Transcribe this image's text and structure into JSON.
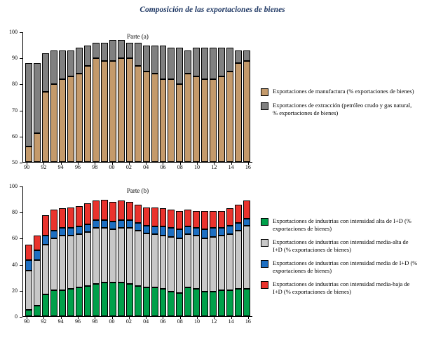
{
  "title": "Composición de las exportaciones de bienes",
  "chart_data": [
    {
      "type": "bar",
      "stacked": true,
      "title": "Parte (a)",
      "x": [
        1990,
        1991,
        1992,
        1993,
        1994,
        1995,
        1996,
        1997,
        1998,
        1999,
        2000,
        2001,
        2002,
        2003,
        2004,
        2005,
        2006,
        2007,
        2008,
        2009,
        2010,
        2011,
        2012,
        2013,
        2014,
        2015,
        2016
      ],
      "x_tick_labels": [
        "90",
        "92",
        "94",
        "96",
        "98",
        "00",
        "02",
        "04",
        "06",
        "08",
        "10",
        "12",
        "14",
        "16"
      ],
      "x_tick_every": 2,
      "ylim": [
        50,
        100
      ],
      "yticks": [
        50,
        60,
        70,
        80,
        90,
        100
      ],
      "legend_position": "right",
      "series": [
        {
          "key": "manufactura",
          "name": "Exportaciones de manufactura (% exportaciones de bienes)",
          "color": "#C49A6B",
          "values": [
            56,
            61,
            77,
            80,
            82,
            83,
            84,
            87,
            90,
            89,
            89,
            90,
            90,
            87,
            85,
            84,
            82,
            82,
            80,
            84,
            83,
            82,
            82,
            83,
            85,
            88,
            89
          ]
        },
        {
          "key": "extraccion",
          "name": "Exportaciones de extracción (petróleo crudo y gas natural, % exportaciones de bienes)",
          "color": "#808080",
          "values": [
            32,
            27,
            15,
            13,
            11,
            10,
            10,
            8,
            6,
            7,
            8,
            7,
            6,
            9,
            10,
            11,
            13,
            12,
            14,
            9,
            11,
            12,
            12,
            11,
            9,
            5,
            4
          ]
        }
      ]
    },
    {
      "type": "bar",
      "stacked": true,
      "title": "Parte (b)",
      "x": [
        1990,
        1991,
        1992,
        1993,
        1994,
        1995,
        1996,
        1997,
        1998,
        1999,
        2000,
        2001,
        2002,
        2003,
        2004,
        2005,
        2006,
        2007,
        2008,
        2009,
        2010,
        2011,
        2012,
        2013,
        2014,
        2015,
        2016
      ],
      "x_tick_labels": [
        "90",
        "92",
        "94",
        "96",
        "98",
        "00",
        "02",
        "04",
        "06",
        "08",
        "10",
        "12",
        "14",
        "16"
      ],
      "x_tick_every": 2,
      "ylim": [
        0,
        100
      ],
      "yticks": [
        0,
        20,
        40,
        60,
        80,
        100
      ],
      "legend_position": "right",
      "series": [
        {
          "key": "intensidad-alta",
          "name": "Exportaciones de industrias con intensidad alta de I+D (% exportaciones de bienes)",
          "color": "#00A04A",
          "values": [
            5,
            8,
            17,
            20,
            20,
            21,
            22,
            23,
            25,
            26,
            26,
            26,
            25,
            23,
            22,
            22,
            21,
            19,
            18,
            22,
            21,
            19,
            19,
            20,
            20,
            21,
            21
          ]
        },
        {
          "key": "intensidad-media-alta",
          "name": "Exportaciones de industrias con intensidad media-alta de I+D (% exportaciones de bienes)",
          "color": "#C8C8C8",
          "values": [
            30,
            35,
            38,
            40,
            42,
            41,
            41,
            42,
            43,
            42,
            41,
            42,
            43,
            43,
            42,
            41,
            41,
            42,
            42,
            41,
            41,
            41,
            42,
            42,
            43,
            45,
            49
          ]
        },
        {
          "key": "intensidad-media",
          "name": "Exportaciones de industrias con intensidad media de I+D (% exportaciones de bienes)",
          "color": "#1D6FC2",
          "values": [
            8,
            8,
            7,
            6,
            6,
            6,
            6,
            6,
            6,
            6,
            6,
            6,
            6,
            6,
            6,
            6,
            7,
            7,
            7,
            6,
            6,
            7,
            7,
            6,
            7,
            6,
            5
          ]
        },
        {
          "key": "intensidad-media-baja",
          "name": "Exportaciones de industrias con intensidad media-baja de I+D (% exportaciones de bienes)",
          "color": "#EA332D",
          "values": [
            12,
            11,
            16,
            16,
            15,
            16,
            16,
            16,
            15,
            16,
            15,
            15,
            14,
            14,
            14,
            15,
            14,
            14,
            14,
            13,
            13,
            14,
            13,
            13,
            13,
            14,
            14
          ]
        }
      ]
    }
  ]
}
